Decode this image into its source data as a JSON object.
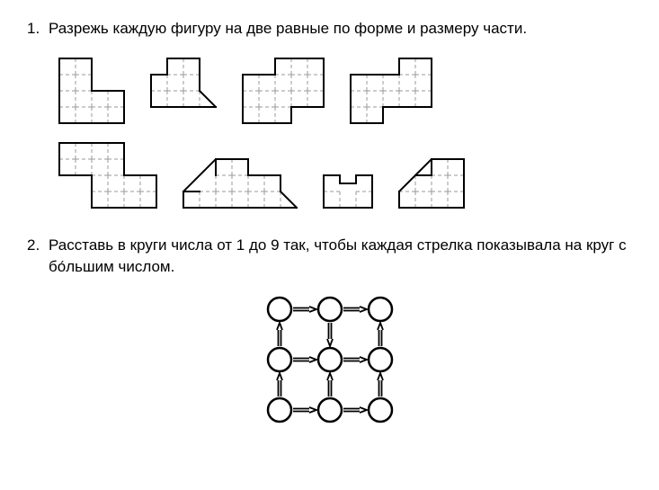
{
  "problems": {
    "p1": {
      "number": "1.",
      "text": "Разрежь каждую фигуру на две равные по форме и размеру части."
    },
    "p2": {
      "number": "2.",
      "text": "Расставь в круги числа от 1 до 9 так, чтобы каждая стрелка показывала на круг с бо́льшим числом."
    }
  },
  "figures": {
    "cell": 18,
    "stroke_outer": "#000000",
    "stroke_outer_w": 2,
    "stroke_inner": "#9a9a9a",
    "stroke_inner_w": 1,
    "stroke_inner_dash": "4 3",
    "background": "#ffffff",
    "row1": {
      "y_top": 0,
      "shapes": [
        {
          "id": "shape1",
          "type": "polyomino",
          "cells": [
            [
              0,
              0
            ],
            [
              1,
              0
            ],
            [
              0,
              1
            ],
            [
              1,
              1
            ],
            [
              0,
              2
            ],
            [
              1,
              2
            ],
            [
              2,
              2
            ],
            [
              3,
              2
            ],
            [
              0,
              3
            ],
            [
              1,
              3
            ],
            [
              2,
              3
            ],
            [
              3,
              3
            ]
          ]
        },
        {
          "id": "shape2",
          "type": "polyomino_triangle",
          "cells": [
            [
              1,
              0
            ],
            [
              2,
              0
            ],
            [
              0,
              1
            ],
            [
              1,
              1
            ],
            [
              2,
              1
            ],
            [
              0,
              2
            ],
            [
              1,
              2
            ],
            [
              2,
              2
            ]
          ],
          "triangles": [
            {
              "cell": [
                3,
                2
              ],
              "corners": [
                "tl",
                "bl",
                "br"
              ]
            }
          ],
          "diag_edges": [
            [
              [
                3,
                2
              ],
              [
                4,
                3
              ]
            ]
          ]
        },
        {
          "id": "shape3",
          "type": "polyomino",
          "cells": [
            [
              2,
              0
            ],
            [
              3,
              0
            ],
            [
              4,
              0
            ],
            [
              0,
              1
            ],
            [
              1,
              1
            ],
            [
              2,
              1
            ],
            [
              3,
              1
            ],
            [
              4,
              1
            ],
            [
              0,
              2
            ],
            [
              1,
              2
            ],
            [
              2,
              2
            ],
            [
              3,
              2
            ],
            [
              4,
              2
            ],
            [
              0,
              3
            ],
            [
              1,
              3
            ],
            [
              2,
              3
            ]
          ]
        },
        {
          "id": "shape4",
          "type": "polyomino",
          "cells": [
            [
              3,
              0
            ],
            [
              4,
              0
            ],
            [
              0,
              1
            ],
            [
              1,
              1
            ],
            [
              2,
              1
            ],
            [
              3,
              1
            ],
            [
              4,
              1
            ],
            [
              0,
              2
            ],
            [
              1,
              2
            ],
            [
              2,
              2
            ],
            [
              3,
              2
            ],
            [
              4,
              2
            ],
            [
              0,
              3
            ],
            [
              1,
              3
            ]
          ]
        }
      ]
    },
    "row2": {
      "shapes": [
        {
          "id": "shape5",
          "type": "polyomino",
          "cells": [
            [
              0,
              0
            ],
            [
              1,
              0
            ],
            [
              2,
              0
            ],
            [
              3,
              0
            ],
            [
              0,
              1
            ],
            [
              1,
              1
            ],
            [
              2,
              1
            ],
            [
              3,
              1
            ],
            [
              2,
              2
            ],
            [
              3,
              2
            ],
            [
              4,
              2
            ],
            [
              5,
              2
            ],
            [
              2,
              3
            ],
            [
              3,
              3
            ],
            [
              4,
              3
            ],
            [
              5,
              3
            ]
          ]
        },
        {
          "id": "shape6",
          "type": "polyomino_triangle",
          "cells": [
            [
              2,
              0
            ],
            [
              3,
              0
            ],
            [
              2,
              1
            ],
            [
              3,
              1
            ],
            [
              4,
              1
            ],
            [
              5,
              1
            ],
            [
              0,
              2
            ],
            [
              1,
              2
            ],
            [
              2,
              2
            ],
            [
              3,
              2
            ],
            [
              4,
              2
            ],
            [
              5,
              2
            ]
          ],
          "triangles": [
            {
              "cell": [
                1,
                1
              ],
              "corners": [
                "tr",
                "bl",
                "br"
              ]
            },
            {
              "cell": [
                6,
                2
              ],
              "corners": [
                "tl",
                "bl",
                "br"
              ]
            }
          ],
          "diag_edges": [
            [
              [
                2,
                0
              ],
              [
                0,
                2
              ]
            ],
            [
              [
                6,
                2
              ],
              [
                7,
                3
              ]
            ]
          ]
        },
        {
          "id": "shape7",
          "type": "polyomino",
          "cells": [
            [
              0,
              0
            ],
            [
              2,
              0
            ],
            [
              0,
              1
            ],
            [
              1,
              1
            ],
            [
              2,
              1
            ]
          ],
          "extra_outer_edges": [
            [
              [
                0,
                0
              ],
              [
                0,
                1
              ]
            ],
            [
              [
                0,
                1
              ],
              [
                1,
                1
              ]
            ],
            [
              [
                1,
                1
              ],
              [
                1,
                0.4
              ]
            ],
            [
              [
                1,
                0.4
              ],
              [
                2,
                0.4
              ]
            ],
            [
              [
                2,
                0.4
              ],
              [
                2,
                1
              ]
            ],
            [
              [
                2,
                1
              ],
              [
                3,
                1
              ]
            ],
            [
              [
                3,
                1
              ],
              [
                3,
                0
              ]
            ],
            [
              [
                3,
                0
              ],
              [
                2.4,
                0
              ]
            ],
            [
              [
                2.4,
                0
              ],
              [
                2.4,
                0.4
              ]
            ]
          ]
        },
        {
          "id": "shape8",
          "type": "polyomino_triangle",
          "cells": [
            [
              2,
              0
            ],
            [
              3,
              0
            ],
            [
              1,
              1
            ],
            [
              2,
              1
            ],
            [
              3,
              1
            ],
            [
              0,
              2
            ],
            [
              1,
              2
            ],
            [
              2,
              2
            ],
            [
              3,
              2
            ]
          ],
          "triangles": [
            {
              "cell": [
                0,
                1
              ],
              "corners": [
                "tr",
                "bl",
                "br"
              ]
            }
          ],
          "diag_edges": [
            [
              [
                2,
                0
              ],
              [
                0,
                2
              ]
            ]
          ]
        }
      ]
    }
  },
  "circle_diagram": {
    "grid": 3,
    "circle_r": 13,
    "circle_stroke": "#000000",
    "circle_stroke_w": 2.5,
    "circle_fill": "#ffffff",
    "arrow_stroke": "#000000",
    "arrow_w": 2.5,
    "spacing": 56,
    "arrows": [
      {
        "from": [
          0,
          0
        ],
        "to": [
          1,
          0
        ]
      },
      {
        "from": [
          1,
          0
        ],
        "to": [
          2,
          0
        ]
      },
      {
        "from": [
          1,
          0
        ],
        "to": [
          1,
          1
        ]
      },
      {
        "from": [
          2,
          1
        ],
        "to": [
          2,
          0
        ]
      },
      {
        "from": [
          0,
          1
        ],
        "to": [
          0,
          0
        ]
      },
      {
        "from": [
          0,
          1
        ],
        "to": [
          1,
          1
        ]
      },
      {
        "from": [
          1,
          1
        ],
        "to": [
          2,
          1
        ]
      },
      {
        "from": [
          0,
          2
        ],
        "to": [
          0,
          1
        ]
      },
      {
        "from": [
          1,
          2
        ],
        "to": [
          1,
          1
        ]
      },
      {
        "from": [
          2,
          2
        ],
        "to": [
          2,
          1
        ]
      },
      {
        "from": [
          0,
          2
        ],
        "to": [
          1,
          2
        ]
      },
      {
        "from": [
          1,
          2
        ],
        "to": [
          2,
          2
        ]
      }
    ]
  }
}
